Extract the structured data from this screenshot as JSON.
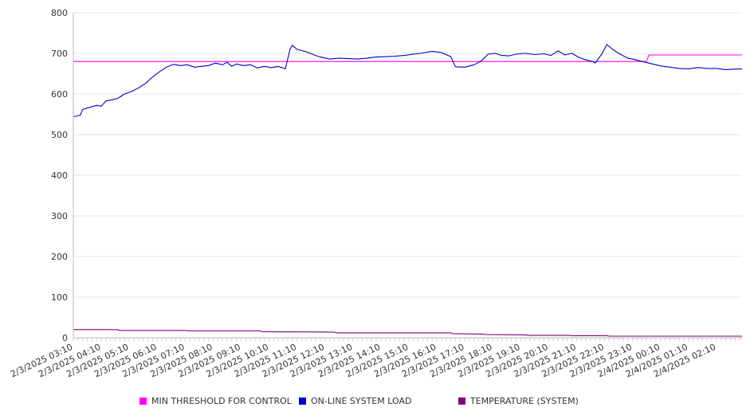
{
  "chart_data": {
    "type": "line",
    "ylim": [
      0,
      800
    ],
    "yticks": [
      0,
      100,
      200,
      300,
      400,
      500,
      600,
      700,
      800
    ],
    "x_tick_labels": [
      "2/3/2025 03:10",
      "2/3/2025 04:10",
      "2/3/2025 05:10",
      "2/3/2025 06:10",
      "2/3/2025 07:10",
      "2/3/2025 08:10",
      "2/3/2025 09:10",
      "2/3/2025 10:10",
      "2/3/2025 11:10",
      "2/3/2025 12:10",
      "2/3/2025 13:10",
      "2/3/2025 14:10",
      "2/3/2025 15:10",
      "2/3/2025 16:10",
      "2/3/2025 17:10",
      "2/3/2025 18:10",
      "2/3/2025 19:10",
      "2/3/2025 20:10",
      "2/3/2025 21:10",
      "2/3/2025 22:10",
      "2/3/2025 23:10",
      "2/4/2025 00:10",
      "2/4/2025 01:10",
      "2/4/2025 02:10"
    ],
    "grid": true,
    "legend_position": "bottom",
    "series": [
      {
        "name": "MIN THRESHOLD FOR CONTROL",
        "color": "#ff00ff",
        "points": [
          [
            "2/3/2025 03:10",
            680
          ],
          [
            "2/3/2025 23:40",
            680
          ],
          [
            "2/3/2025 23:45",
            696
          ],
          [
            "2/4/2025 03:05",
            696
          ]
        ]
      },
      {
        "name": "ON-LINE SYSTEM LOAD",
        "color": "#0000cc",
        "points": [
          [
            "2/3/2025 03:10",
            544
          ],
          [
            "2/3/2025 03:25",
            548
          ],
          [
            "2/3/2025 03:30",
            562
          ],
          [
            "2/3/2025 03:45",
            567
          ],
          [
            "2/3/2025 04:00",
            572
          ],
          [
            "2/3/2025 04:10",
            570
          ],
          [
            "2/3/2025 04:20",
            583
          ],
          [
            "2/3/2025 04:30",
            585
          ],
          [
            "2/3/2025 04:45",
            589
          ],
          [
            "2/3/2025 05:00",
            600
          ],
          [
            "2/3/2025 05:15",
            606
          ],
          [
            "2/3/2025 05:30",
            615
          ],
          [
            "2/3/2025 05:45",
            626
          ],
          [
            "2/3/2025 06:00",
            642
          ],
          [
            "2/3/2025 06:15",
            655
          ],
          [
            "2/3/2025 06:30",
            666
          ],
          [
            "2/3/2025 06:45",
            673
          ],
          [
            "2/3/2025 07:00",
            670
          ],
          [
            "2/3/2025 07:15",
            672
          ],
          [
            "2/3/2025 07:30",
            666
          ],
          [
            "2/3/2025 07:45",
            668
          ],
          [
            "2/3/2025 08:00",
            670
          ],
          [
            "2/3/2025 08:15",
            676
          ],
          [
            "2/3/2025 08:30",
            672
          ],
          [
            "2/3/2025 08:40",
            678
          ],
          [
            "2/3/2025 08:50",
            668
          ],
          [
            "2/3/2025 09:00",
            674
          ],
          [
            "2/3/2025 09:15",
            670
          ],
          [
            "2/3/2025 09:30",
            672
          ],
          [
            "2/3/2025 09:45",
            664
          ],
          [
            "2/3/2025 10:00",
            668
          ],
          [
            "2/3/2025 10:15",
            665
          ],
          [
            "2/3/2025 10:30",
            668
          ],
          [
            "2/3/2025 10:45",
            662
          ],
          [
            "2/3/2025 10:55",
            710
          ],
          [
            "2/3/2025 11:00",
            720
          ],
          [
            "2/3/2025 11:10",
            710
          ],
          [
            "2/3/2025 11:30",
            704
          ],
          [
            "2/3/2025 11:50",
            695
          ],
          [
            "2/3/2025 12:00",
            691
          ],
          [
            "2/3/2025 12:20",
            686
          ],
          [
            "2/3/2025 12:40",
            688
          ],
          [
            "2/3/2025 13:00",
            687
          ],
          [
            "2/3/2025 13:20",
            686
          ],
          [
            "2/3/2025 13:40",
            688
          ],
          [
            "2/3/2025 14:00",
            691
          ],
          [
            "2/3/2025 14:20",
            692
          ],
          [
            "2/3/2025 14:40",
            693
          ],
          [
            "2/3/2025 15:00",
            695
          ],
          [
            "2/3/2025 15:20",
            698
          ],
          [
            "2/3/2025 15:40",
            701
          ],
          [
            "2/3/2025 16:00",
            705
          ],
          [
            "2/3/2025 16:20",
            702
          ],
          [
            "2/3/2025 16:40",
            692
          ],
          [
            "2/3/2025 16:50",
            667
          ],
          [
            "2/3/2025 17:10",
            666
          ],
          [
            "2/3/2025 17:30",
            672
          ],
          [
            "2/3/2025 17:45",
            681
          ],
          [
            "2/3/2025 18:00",
            698
          ],
          [
            "2/3/2025 18:15",
            700
          ],
          [
            "2/3/2025 18:30",
            695
          ],
          [
            "2/3/2025 18:45",
            694
          ],
          [
            "2/3/2025 19:00",
            698
          ],
          [
            "2/3/2025 19:20",
            700
          ],
          [
            "2/3/2025 19:40",
            697
          ],
          [
            "2/3/2025 20:00",
            699
          ],
          [
            "2/3/2025 20:15",
            695
          ],
          [
            "2/3/2025 20:30",
            706
          ],
          [
            "2/3/2025 20:45",
            696
          ],
          [
            "2/3/2025 21:00",
            700
          ],
          [
            "2/3/2025 21:15",
            690
          ],
          [
            "2/3/2025 21:30",
            684
          ],
          [
            "2/3/2025 21:45",
            680
          ],
          [
            "2/3/2025 21:50",
            676
          ],
          [
            "2/3/2025 22:05",
            700
          ],
          [
            "2/3/2025 22:15",
            722
          ],
          [
            "2/3/2025 22:25",
            712
          ],
          [
            "2/3/2025 22:40",
            700
          ],
          [
            "2/3/2025 23:00",
            688
          ],
          [
            "2/3/2025 23:15",
            685
          ],
          [
            "2/3/2025 23:30",
            680
          ],
          [
            "2/3/2025 23:45",
            676
          ],
          [
            "2/4/2025 00:10",
            669
          ],
          [
            "2/4/2025 00:30",
            666
          ],
          [
            "2/4/2025 00:50",
            663
          ],
          [
            "2/4/2025 01:10",
            662
          ],
          [
            "2/4/2025 01:30",
            665
          ],
          [
            "2/4/2025 01:50",
            663
          ],
          [
            "2/4/2025 02:10",
            663
          ],
          [
            "2/4/2025 02:30",
            660
          ],
          [
            "2/4/2025 02:45",
            661
          ],
          [
            "2/4/2025 03:05",
            662
          ]
        ]
      },
      {
        "name": "TEMPERATURE (SYSTEM)",
        "color": "#800080",
        "points": [
          [
            "2/3/2025 03:10",
            20
          ],
          [
            "2/3/2025 04:45",
            20
          ],
          [
            "2/3/2025 04:50",
            18
          ],
          [
            "2/3/2025 07:10",
            18
          ],
          [
            "2/3/2025 07:15",
            17
          ],
          [
            "2/3/2025 09:50",
            17
          ],
          [
            "2/3/2025 09:55",
            15
          ],
          [
            "2/3/2025 12:30",
            14
          ],
          [
            "2/3/2025 12:35",
            12
          ],
          [
            "2/3/2025 16:40",
            12
          ],
          [
            "2/3/2025 16:45",
            10
          ],
          [
            "2/3/2025 17:50",
            9
          ],
          [
            "2/3/2025 17:55",
            8
          ],
          [
            "2/3/2025 19:20",
            7
          ],
          [
            "2/3/2025 19:25",
            6
          ],
          [
            "2/3/2025 20:55",
            6
          ],
          [
            "2/3/2025 21:00",
            5
          ],
          [
            "2/3/2025 22:15",
            5
          ],
          [
            "2/3/2025 22:20",
            4
          ],
          [
            "2/4/2025 03:05",
            4
          ]
        ]
      }
    ]
  }
}
